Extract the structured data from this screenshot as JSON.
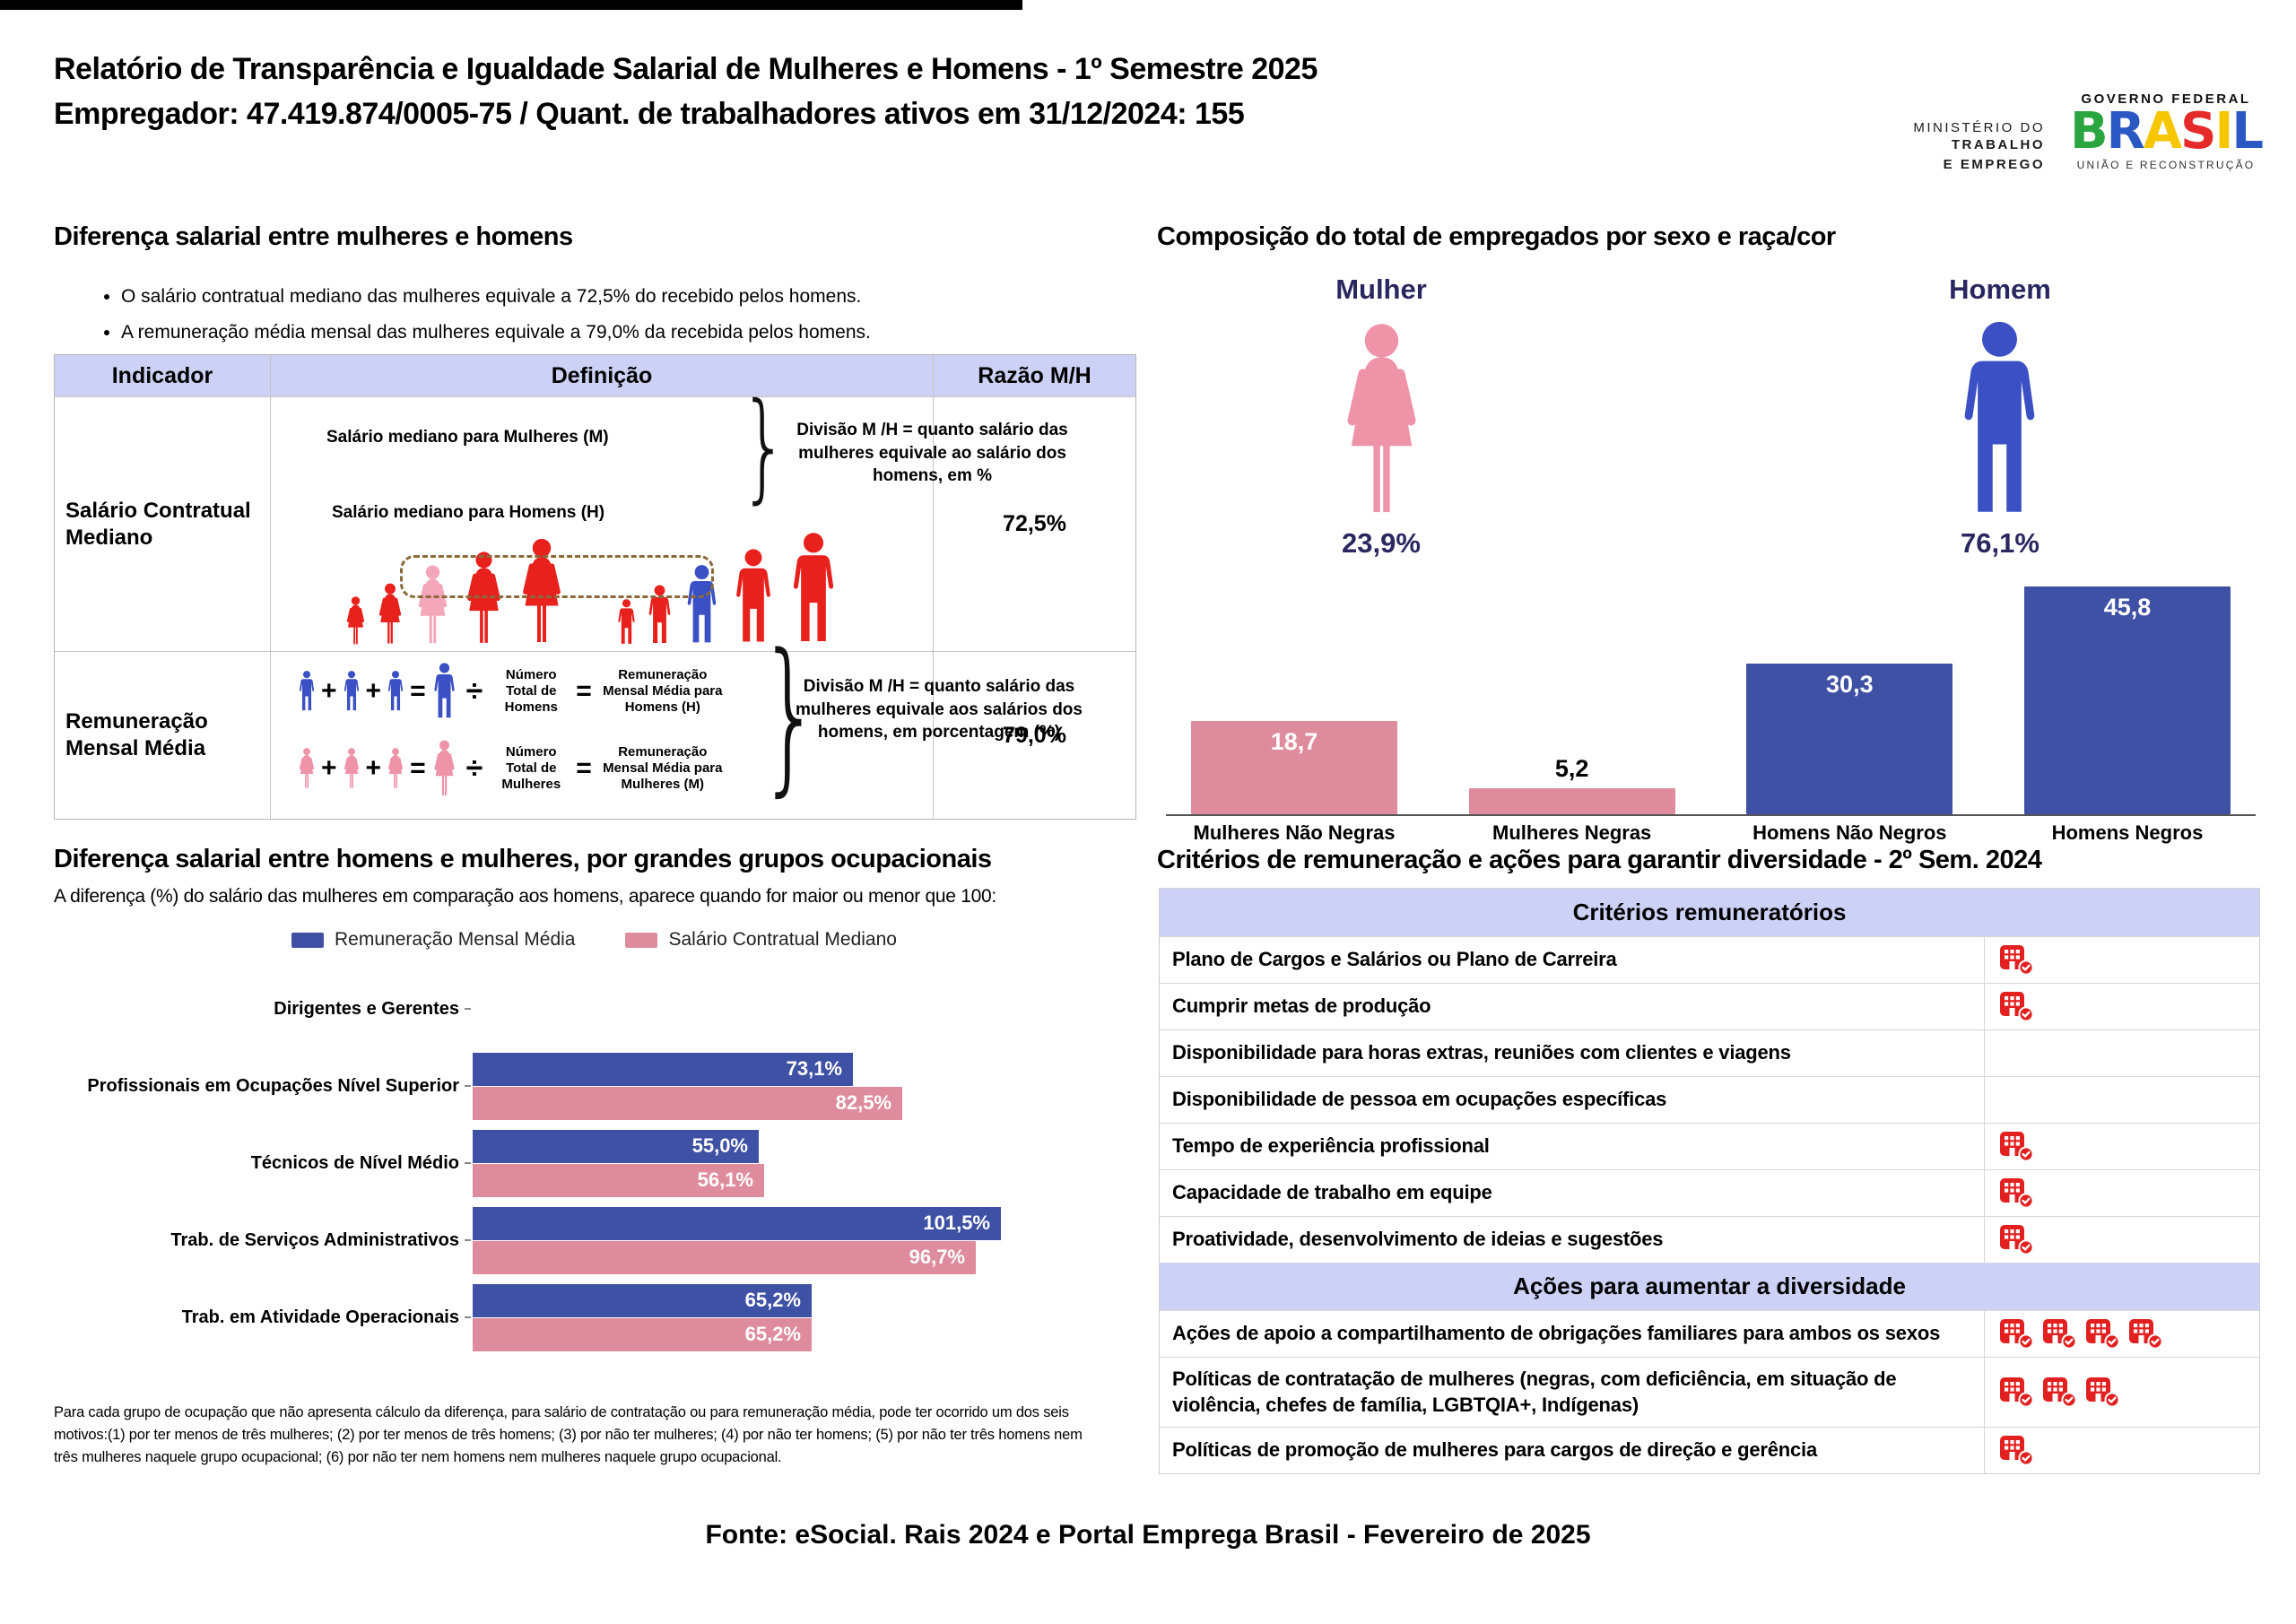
{
  "header": {
    "title_line1": "Relatório de Transparência e Igualdade Salarial de Mulheres e Homens - 1º Semestre 2025",
    "title_line2": "Empregador: 47.419.874/0005-75    /    Quant. de trabalhadores ativos em 31/12/2024: 155",
    "ministry": [
      "MINISTÉRIO DO",
      "TRABALHO",
      "E EMPREGO"
    ],
    "gov_logo": {
      "top": "GOVERNO FEDERAL",
      "name": "BRASIL",
      "bottom": "UNIÃO E RECONSTRUÇÃO",
      "letter_colors": [
        "#2aa641",
        "#2b59c3",
        "#f6c700",
        "#e52b2a",
        "#f6c700",
        "#2b59c3"
      ]
    }
  },
  "salary_diff": {
    "title": "Diferença salarial entre mulheres e homens",
    "bullets": [
      "O salário contratual mediano das mulheres equivale a 72,5% do recebido pelos homens.",
      "A remuneração média mensal das mulheres equivale a 79,0% da recebida pelos homens."
    ],
    "table": {
      "headers": [
        "Indicador",
        "Definição",
        "Razão M/H"
      ],
      "row1": {
        "indicator": "Salário Contratual Mediano",
        "def_line1": "Salário mediano para Mulheres (M)",
        "def_line2": "Salário mediano para Homens (H)",
        "note": "Divisão M /H = quanto salário das mulheres equivale ao salário dos homens, em %",
        "ratio": "72,5%"
      },
      "row2": {
        "indicator": "Remuneração Mensal Média",
        "men_divisor": "Número Total de Homens",
        "men_result": "Remuneração Mensal Média para Homens (H)",
        "women_divisor": "Número Total de Mulheres",
        "women_result": "Remuneração Mensal Média para Mulheres (M)",
        "note": "Divisão M /H = quanto salário das mulheres equivale aos salários dos homens, em porcentagem (%)",
        "ratio": "79,0%",
        "plus": "+",
        "equals": "=",
        "divide": "÷"
      }
    }
  },
  "composition": {
    "title": "Composição do total de empregados por sexo e raça/cor",
    "female_label": "Mulher",
    "female_pct": "23,9%",
    "male_label": "Homem",
    "male_pct": "76,1%",
    "bars": [
      {
        "label": "Mulheres Não Negras",
        "value_text": "18,7",
        "value": 18.7,
        "color": "#de8c9d",
        "label_inside": true
      },
      {
        "label": "Mulheres Negras",
        "value_text": "5,2",
        "value": 5.2,
        "color": "#de8c9d",
        "label_inside": false
      },
      {
        "label": "Homens Não Negros",
        "value_text": "30,3",
        "value": 30.3,
        "color": "#3f51a4",
        "label_inside": true
      },
      {
        "label": "Homens Negros",
        "value_text": "45,8",
        "value": 45.8,
        "color": "#3f51a4",
        "label_inside": true
      }
    ]
  },
  "occupational": {
    "title": "Diferença salarial entre homens e mulheres, por grandes grupos ocupacionais",
    "subtitle": "A diferença (%) do salário das mulheres em comparação aos homens, aparece quando for maior ou menor que 100:",
    "legend": [
      "Remuneração Mensal Média",
      "Salário Contratual Mediano"
    ],
    "groups": [
      {
        "label": "Dirigentes e Gerentes",
        "blue": null,
        "blue_text": "",
        "pink": null,
        "pink_text": ""
      },
      {
        "label": "Profissionais em Ocupações Nível Superior",
        "blue": 73.1,
        "blue_text": "73,1%",
        "pink": 82.5,
        "pink_text": "82,5%"
      },
      {
        "label": "Técnicos de Nível Médio",
        "blue": 55.0,
        "blue_text": "55,0%",
        "pink": 56.1,
        "pink_text": "56,1%"
      },
      {
        "label": "Trab. de Serviços Administrativos",
        "blue": 101.5,
        "blue_text": "101,5%",
        "pink": 96.7,
        "pink_text": "96,7%"
      },
      {
        "label": "Trab. em Atividade Operacionais",
        "blue": 65.2,
        "blue_text": "65,2%",
        "pink": 65.2,
        "pink_text": "65,2%"
      }
    ],
    "footnote": "Para cada grupo de ocupação que não apresenta cálculo da diferença, para salário de contratação ou para remuneração média, pode ter ocorrido um dos seis motivos:(1) por ter menos de três mulheres; (2) por ter menos de três homens; (3) por não ter mulheres; (4) por não ter homens; (5) por não ter três homens nem três mulheres naquele grupo ocupacional; (6) por não ter nem homens nem mulheres naquele grupo ocupacional."
  },
  "criteria": {
    "title": "Critérios de remuneração e ações para garantir diversidade - 2º Sem. 2024",
    "section1": "Critérios remuneratórios",
    "rows1": [
      {
        "label": "Plano de Cargos e Salários ou Plano de Carreira",
        "icons": 1
      },
      {
        "label": "Cumprir metas de produção",
        "icons": 1
      },
      {
        "label": "Disponibilidade para horas extras, reuniões com clientes e viagens",
        "icons": 0
      },
      {
        "label": "Disponibilidade de pessoa em ocupações específicas",
        "icons": 0
      },
      {
        "label": "Tempo de experiência profissional",
        "icons": 1
      },
      {
        "label": "Capacidade de trabalho em equipe",
        "icons": 1
      },
      {
        "label": "Proatividade, desenvolvimento de ideias e sugestões",
        "icons": 1
      }
    ],
    "section2": "Ações para aumentar a diversidade",
    "rows2": [
      {
        "label": "Ações de apoio a compartilhamento de obrigações familiares para ambos os sexos",
        "icons": 4
      },
      {
        "label": "Políticas de contratação de mulheres (negras, com deficiência, em situação de violência, chefes de família, LGBTQIA+, Indígenas)",
        "icons": 3
      },
      {
        "label": "Políticas de promoção de mulheres para cargos de direção e gerência",
        "icons": 1
      }
    ]
  },
  "footer": "Fonte: eSocial. Rais 2024 e Portal Emprega Brasil - Fevereiro de 2025",
  "colors": {
    "blue_bar": "#3f51a4",
    "pink_bar": "#de8c9d",
    "person_pink": "#ef93a9",
    "person_blue": "#3a50c4",
    "person_red": "#e8211d",
    "person_pink_light": "#f4a7bb",
    "navy_text": "#2a2760",
    "lilac_header": "#ccd1f5",
    "icon_red": "#e32020",
    "dash_brown": "#8a6a3a"
  },
  "chart_data": [
    {
      "type": "bar",
      "title": "Composição do total de empregados por sexo e raça/cor",
      "categories": [
        "Mulheres Não Negras",
        "Mulheres Negras",
        "Homens Não Negros",
        "Homens Negros"
      ],
      "values": [
        18.7,
        5.2,
        30.3,
        45.8
      ],
      "colors": [
        "#de8c9d",
        "#de8c9d",
        "#3f51a4",
        "#3f51a4"
      ],
      "annotations": {
        "Mulher": "23,9%",
        "Homem": "76,1%"
      },
      "ylim": [
        0,
        50
      ],
      "grid": false
    },
    {
      "type": "bar",
      "orientation": "horizontal",
      "title": "Diferença salarial entre homens e mulheres, por grandes grupos ocupacionais",
      "categories": [
        "Dirigentes e Gerentes",
        "Profissionais em Ocupações Nível Superior",
        "Técnicos de Nível Médio",
        "Trab. de Serviços Administrativos",
        "Trab. em Atividade Operacionais"
      ],
      "series": [
        {
          "name": "Remuneração Mensal Média",
          "values": [
            null,
            73.1,
            55.0,
            101.5,
            65.2
          ]
        },
        {
          "name": "Salário Contratual Mediano",
          "values": [
            null,
            82.5,
            56.1,
            96.7,
            65.2
          ]
        }
      ],
      "xlim": [
        0,
        110
      ],
      "legend_position": "top",
      "grid": false
    }
  ]
}
